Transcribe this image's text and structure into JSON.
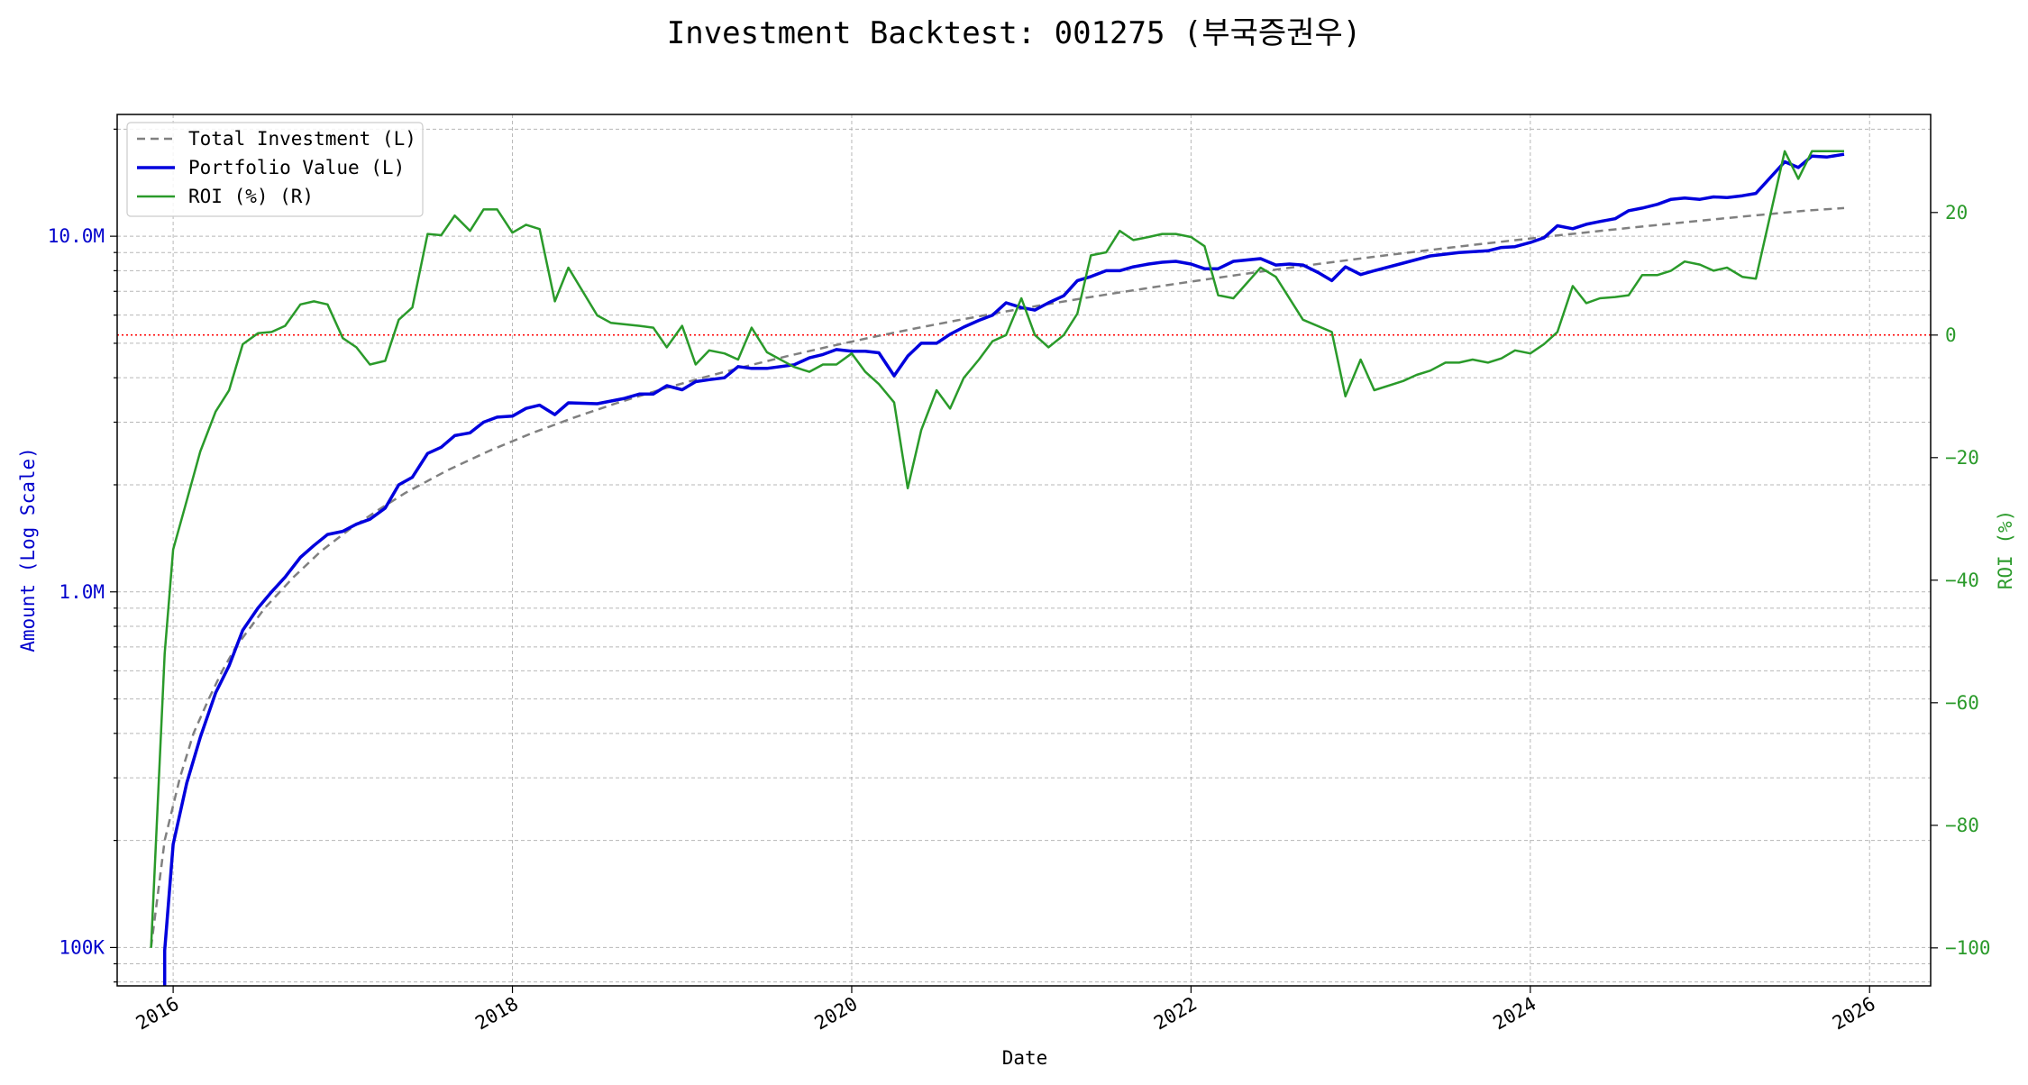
{
  "chart_data": {
    "type": "line",
    "title": "Investment Backtest: 001275 (부국증권우)",
    "xlabel": "Date",
    "ylabel_left": "Amount (Log Scale)",
    "ylabel_right": "ROI (%)",
    "left_axis": {
      "scale": "log",
      "range": [
        78000,
        22000000
      ],
      "ticks": [
        {
          "value": 100000,
          "label": "100K"
        },
        {
          "value": 1000000,
          "label": "1.0M"
        },
        {
          "value": 10000000,
          "label": "10.0M"
        }
      ]
    },
    "right_axis": {
      "scale": "linear",
      "range": [
        -106.2,
        36.0
      ],
      "ticks": [
        {
          "value": -100,
          "label": "−100"
        },
        {
          "value": -80,
          "label": "−80"
        },
        {
          "value": -60,
          "label": "−60"
        },
        {
          "value": -40,
          "label": "−40"
        },
        {
          "value": -20,
          "label": "−20"
        },
        {
          "value": 0,
          "label": "0"
        },
        {
          "value": 20,
          "label": "20"
        }
      ]
    },
    "x_axis": {
      "range": [
        2015.67,
        2026.36
      ],
      "ticks": [
        {
          "value": 2016,
          "label": "2016"
        },
        {
          "value": 2018,
          "label": "2018"
        },
        {
          "value": 2020,
          "label": "2020"
        },
        {
          "value": 2022,
          "label": "2022"
        },
        {
          "value": 2024,
          "label": "2024"
        },
        {
          "value": 2026,
          "label": "2026"
        }
      ]
    },
    "grid": true,
    "legend_position": "upper left",
    "zero_line": {
      "value": 0,
      "axis": "right",
      "color": "#ff0000",
      "style": "dotted"
    },
    "series": [
      {
        "name": "Total Investment (L)",
        "axis": "left",
        "color": "#808080",
        "style": "dashed",
        "x": [
          2015.87,
          2015.95,
          2016.04,
          2016.12,
          2016.21,
          2016.29,
          2016.37,
          2016.54,
          2016.71,
          2016.87,
          2017.04,
          2017.21,
          2017.37,
          2017.62,
          2017.87,
          2018.12,
          2018.37,
          2018.62,
          2018.87,
          2019.12,
          2019.37,
          2019.62,
          2019.87,
          2020.12,
          2020.37,
          2020.62,
          2020.87,
          2021.12,
          2021.37,
          2021.62,
          2021.87,
          2022.12,
          2022.37,
          2022.62,
          2022.87,
          2023.12,
          2023.37,
          2023.62,
          2023.87,
          2024.12,
          2024.37,
          2024.62,
          2024.87,
          2025.12,
          2025.37,
          2025.62,
          2025.85
        ],
        "values": [
          100000,
          200000,
          300000,
          400000,
          500000,
          600000,
          700000,
          900000,
          1100000,
          1300000,
          1500000,
          1700000,
          1900000,
          2200000,
          2500000,
          2800000,
          3100000,
          3400000,
          3700000,
          4000000,
          4300000,
          4600000,
          4900000,
          5200000,
          5500000,
          5800000,
          6100000,
          6400000,
          6700000,
          7000000,
          7300000,
          7600000,
          7900000,
          8200000,
          8500000,
          8800000,
          9100000,
          9400000,
          9700000,
          10000000,
          10300000,
          10600000,
          10900000,
          11200000,
          11500000,
          11800000,
          12000000
        ]
      },
      {
        "name": "Portfolio Value (L)",
        "axis": "left",
        "color": "#0000dd",
        "style": "solid",
        "x": [
          2015.95,
          2015.95,
          2016.0,
          2016.08,
          2016.16,
          2016.25,
          2016.33,
          2016.41,
          2016.5,
          2016.58,
          2016.66,
          2016.75,
          2016.83,
          2016.91,
          2017.0,
          2017.08,
          2017.16,
          2017.25,
          2017.33,
          2017.41,
          2017.5,
          2017.58,
          2017.66,
          2017.75,
          2017.83,
          2017.91,
          2018.0,
          2018.08,
          2018.16,
          2018.25,
          2018.33,
          2018.5,
          2018.66,
          2018.75,
          2018.83,
          2018.91,
          2019.0,
          2019.08,
          2019.16,
          2019.25,
          2019.33,
          2019.41,
          2019.5,
          2019.66,
          2019.75,
          2019.83,
          2019.91,
          2020.0,
          2020.08,
          2020.16,
          2020.25,
          2020.33,
          2020.41,
          2020.5,
          2020.58,
          2020.66,
          2020.75,
          2020.83,
          2020.91,
          2021.0,
          2021.08,
          2021.16,
          2021.25,
          2021.33,
          2021.41,
          2021.5,
          2021.58,
          2021.66,
          2021.75,
          2021.83,
          2021.91,
          2022.0,
          2022.08,
          2022.16,
          2022.25,
          2022.41,
          2022.5,
          2022.58,
          2022.66,
          2022.75,
          2022.83,
          2022.91,
          2023.0,
          2023.08,
          2023.25,
          2023.41,
          2023.58,
          2023.75,
          2023.83,
          2023.91,
          2024.0,
          2024.08,
          2024.16,
          2024.25,
          2024.33,
          2024.41,
          2024.5,
          2024.58,
          2024.66,
          2024.75,
          2024.83,
          2024.91,
          2025.0,
          2025.08,
          2025.16,
          2025.25,
          2025.33,
          2025.5,
          2025.58,
          2025.66,
          2025.75,
          2025.85
        ],
        "values": [
          78000,
          98000,
          195000,
          290000,
          390000,
          520000,
          620000,
          780000,
          900000,
          1000000,
          1100000,
          1250000,
          1350000,
          1450000,
          1480000,
          1550000,
          1600000,
          1720000,
          2000000,
          2100000,
          2450000,
          2550000,
          2750000,
          2800000,
          3000000,
          3100000,
          3120000,
          3280000,
          3350000,
          3150000,
          3400000,
          3380000,
          3500000,
          3600000,
          3600000,
          3800000,
          3700000,
          3900000,
          3950000,
          4000000,
          4300000,
          4250000,
          4250000,
          4350000,
          4550000,
          4650000,
          4800000,
          4750000,
          4750000,
          4700000,
          4050000,
          4600000,
          5000000,
          5000000,
          5300000,
          5550000,
          5800000,
          6000000,
          6500000,
          6300000,
          6200000,
          6500000,
          6800000,
          7500000,
          7700000,
          8000000,
          8000000,
          8200000,
          8350000,
          8450000,
          8500000,
          8350000,
          8100000,
          8100000,
          8500000,
          8650000,
          8300000,
          8350000,
          8300000,
          7900000,
          7500000,
          8200000,
          7800000,
          8000000,
          8400000,
          8800000,
          9000000,
          9100000,
          9300000,
          9350000,
          9600000,
          9900000,
          10700000,
          10500000,
          10800000,
          11000000,
          11200000,
          11800000,
          12000000,
          12300000,
          12700000,
          12800000,
          12700000,
          12900000,
          12850000,
          13000000,
          13200000,
          16200000,
          15600000,
          16800000,
          16700000,
          17000000
        ]
      },
      {
        "name": "ROI (%) (R)",
        "axis": "right",
        "color": "#2a9a2a",
        "style": "solid",
        "x": [
          2015.87,
          2015.95,
          2016.0,
          2016.08,
          2016.16,
          2016.25,
          2016.33,
          2016.41,
          2016.5,
          2016.58,
          2016.66,
          2016.75,
          2016.83,
          2016.91,
          2017.0,
          2017.08,
          2017.16,
          2017.25,
          2017.33,
          2017.41,
          2017.5,
          2017.58,
          2017.66,
          2017.75,
          2017.83,
          2017.91,
          2018.0,
          2018.08,
          2018.16,
          2018.25,
          2018.33,
          2018.5,
          2018.58,
          2018.75,
          2018.83,
          2018.91,
          2019.0,
          2019.08,
          2019.16,
          2019.25,
          2019.33,
          2019.41,
          2019.5,
          2019.66,
          2019.75,
          2019.83,
          2019.91,
          2020.0,
          2020.08,
          2020.16,
          2020.25,
          2020.33,
          2020.41,
          2020.5,
          2020.58,
          2020.66,
          2020.75,
          2020.83,
          2020.91,
          2021.0,
          2021.08,
          2021.16,
          2021.25,
          2021.33,
          2021.41,
          2021.5,
          2021.58,
          2021.66,
          2021.75,
          2021.83,
          2021.91,
          2022.0,
          2022.08,
          2022.16,
          2022.25,
          2022.41,
          2022.5,
          2022.66,
          2022.83,
          2022.91,
          2023.0,
          2023.08,
          2023.25,
          2023.33,
          2023.41,
          2023.5,
          2023.58,
          2023.66,
          2023.75,
          2023.83,
          2023.91,
          2024.0,
          2024.08,
          2024.16,
          2024.25,
          2024.33,
          2024.41,
          2024.5,
          2024.58,
          2024.66,
          2024.75,
          2024.83,
          2024.91,
          2025.0,
          2025.08,
          2025.16,
          2025.25,
          2025.33,
          2025.5,
          2025.58,
          2025.66,
          2025.75,
          2025.85
        ],
        "values": [
          -100,
          -52,
          -35,
          -27,
          -19,
          -12.5,
          -9,
          -1.5,
          0.3,
          0.5,
          1.5,
          5,
          5.5,
          5,
          -0.5,
          -2,
          -4.8,
          -4.2,
          2.5,
          4.5,
          16.5,
          16.3,
          19.5,
          17,
          20.5,
          20.5,
          16.7,
          18,
          17.3,
          5.5,
          11,
          3.2,
          2,
          1.5,
          1.2,
          -2,
          1.5,
          -4.8,
          -2.5,
          -3,
          -4,
          1.2,
          -2.8,
          -5.2,
          -6,
          -4.8,
          -4.8,
          -3,
          -6,
          -8,
          -11,
          -25,
          -15.5,
          -9,
          -12,
          -7,
          -4,
          -1,
          0,
          6,
          0,
          -2,
          0,
          3.5,
          13,
          13.5,
          17,
          15.5,
          16,
          16.5,
          16.5,
          16,
          14.5,
          6.5,
          6,
          11,
          9.5,
          2.5,
          0.5,
          -10,
          -4,
          -9,
          -7.5,
          -6.5,
          -5.8,
          -4.5,
          -4.5,
          -4,
          -4.5,
          -3.8,
          -2.5,
          -3,
          -1.5,
          0.5,
          8,
          5.2,
          6,
          6.2,
          6.5,
          9.8,
          9.8,
          10.5,
          12,
          11.5,
          10.5,
          11,
          9.5,
          9.2,
          30,
          25.5,
          30,
          30,
          30
        ]
      }
    ]
  }
}
